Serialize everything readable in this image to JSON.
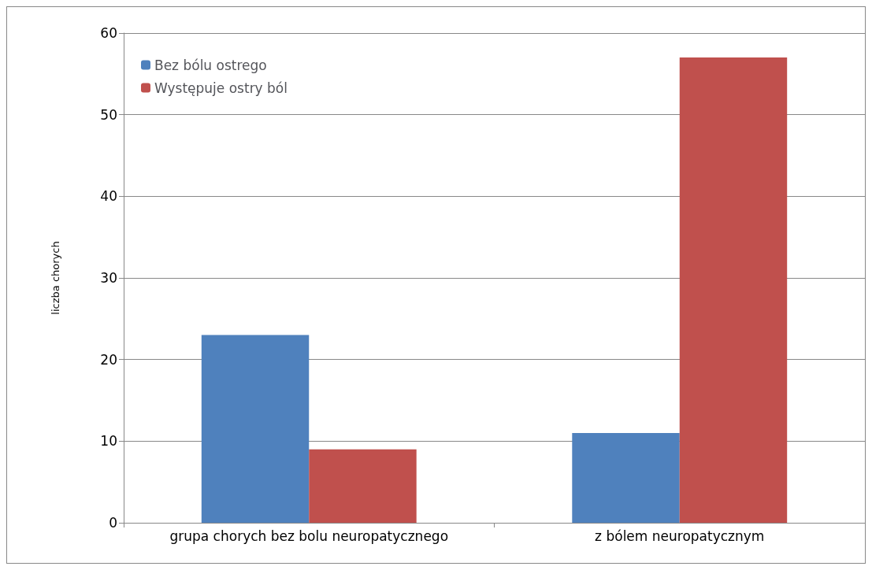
{
  "chart_data": {
    "type": "bar",
    "ylabel": "liczba chorych",
    "categories": [
      "grupa chorych bez bolu neuropatycznego",
      "z bólem neuropatycznym"
    ],
    "series": [
      {
        "name": "Bez bólu ostrego",
        "color": "#4f81bd",
        "values": [
          23,
          11
        ]
      },
      {
        "name": "Występuje ostry ból",
        "color": "#c0504d",
        "values": [
          9,
          57
        ]
      }
    ],
    "ylim": [
      0,
      60
    ],
    "yticks": [
      0,
      10,
      20,
      30,
      40,
      50,
      60
    ],
    "grid": "y",
    "legend": "top left"
  }
}
